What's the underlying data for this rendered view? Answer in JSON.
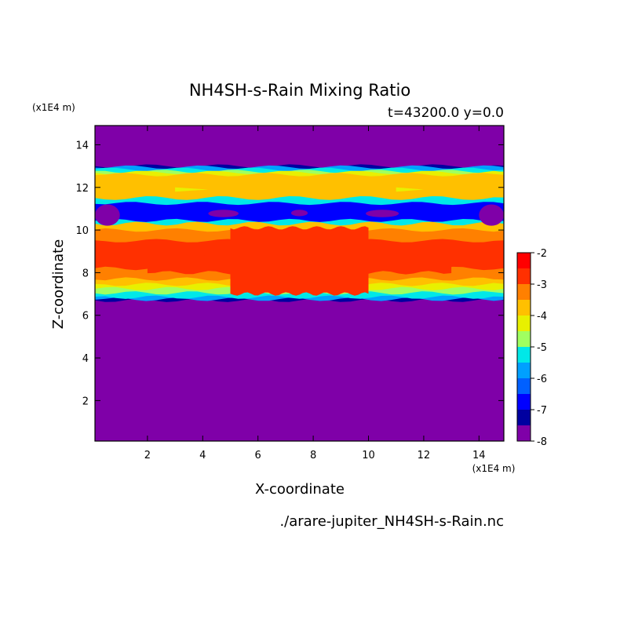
{
  "chart_data": {
    "type": "heatmap",
    "title": "NH4SH-s-Rain Mixing Ratio",
    "subtitle": "t=43200.0 y=0.0",
    "xlabel": "X-coordinate",
    "ylabel": "Z-coordinate",
    "x_unit": "(x1E4 m)",
    "y_unit": "(x1E4 m)",
    "source_file": "./arare-jupiter_NH4SH-s-Rain.nc",
    "xlim": [
      0.1,
      14.9
    ],
    "ylim": [
      0.1,
      14.9
    ],
    "x_ticks": [
      2,
      4,
      6,
      8,
      10,
      12,
      14
    ],
    "y_ticks": [
      2,
      4,
      6,
      8,
      10,
      12,
      14
    ],
    "colorbar": {
      "range": [
        -8,
        -2
      ],
      "tick_labels": [
        "-2",
        "-3",
        "-4",
        "-5",
        "-6",
        "-7",
        "-8"
      ],
      "tick_values": [
        -2,
        -3,
        -4,
        -5,
        -6,
        -7,
        -8
      ],
      "levels": [
        {
          "from": -8.0,
          "to": -7.5,
          "color": "#7f00a8"
        },
        {
          "from": -7.5,
          "to": -7.0,
          "color": "#0000a0"
        },
        {
          "from": -7.0,
          "to": -6.5,
          "color": "#0000ff"
        },
        {
          "from": -6.5,
          "to": -6.0,
          "color": "#0060ff"
        },
        {
          "from": -6.0,
          "to": -5.5,
          "color": "#00a0ff"
        },
        {
          "from": -5.5,
          "to": -5.0,
          "color": "#00e8e8"
        },
        {
          "from": -5.0,
          "to": -4.5,
          "color": "#a0ff60"
        },
        {
          "from": -4.5,
          "to": -4.0,
          "color": "#e8f000"
        },
        {
          "from": -4.0,
          "to": -3.5,
          "color": "#ffc000"
        },
        {
          "from": -3.5,
          "to": -3.0,
          "color": "#ff8000"
        },
        {
          "from": -3.0,
          "to": -2.5,
          "color": "#ff3000"
        },
        {
          "from": -2.5,
          "to": -2.0,
          "color": "#ff0000"
        },
        {
          "from": -2.0,
          "to": -1.5,
          "color": "#ffa0a0"
        }
      ]
    },
    "bands": [
      {
        "level_index": 1,
        "x": [
          0.1,
          14.9
        ],
        "z": [
          6.7,
          13.0
        ]
      },
      {
        "level_index": 4,
        "x": [
          0.1,
          14.9
        ],
        "z": [
          6.75,
          12.95
        ]
      },
      {
        "level_index": 5,
        "x": [
          0.1,
          14.9
        ],
        "z": [
          6.85,
          12.85
        ]
      },
      {
        "level_index": 6,
        "x": [
          0.1,
          14.9
        ],
        "z": [
          7.05,
          12.75
        ]
      },
      {
        "level_index": 7,
        "x": [
          0.1,
          14.9
        ],
        "z": [
          7.25,
          12.7
        ]
      },
      {
        "level_index": 8,
        "x": [
          0.1,
          14.9
        ],
        "z": [
          7.45,
          12.6
        ]
      },
      {
        "level_index": 9,
        "x": [
          0.1,
          14.9
        ],
        "z": [
          7.7,
          10.0
        ]
      },
      {
        "level_index": 10,
        "x": [
          0.1,
          14.9
        ],
        "z": [
          8.2,
          9.5
        ]
      },
      {
        "level_index": 10,
        "x": [
          5.0,
          10.0
        ],
        "z": [
          7.0,
          10.1
        ]
      },
      {
        "level_index": 10,
        "x": [
          2.0,
          13.0
        ],
        "z": [
          8.0,
          8.8
        ]
      }
    ],
    "thin_layer": {
      "level_index": 5,
      "x": [
        0.1,
        14.9
      ],
      "z": [
        10.3,
        11.5
      ]
    },
    "thin_layer_core": {
      "level_index": 2,
      "x": [
        0.1,
        14.9
      ],
      "z": [
        10.45,
        11.25
      ]
    },
    "pockets": [
      {
        "level_index": 0,
        "x": [
          0.1,
          1.0
        ],
        "z": [
          10.2,
          11.2
        ]
      },
      {
        "level_index": 0,
        "x": [
          14.0,
          14.9
        ],
        "z": [
          10.2,
          11.2
        ]
      },
      {
        "level_index": 0,
        "x": [
          4.2,
          5.3
        ],
        "z": [
          10.6,
          10.95
        ]
      },
      {
        "level_index": 0,
        "x": [
          9.9,
          11.1
        ],
        "z": [
          10.6,
          10.95
        ]
      },
      {
        "level_index": 0,
        "x": [
          7.2,
          7.8
        ],
        "z": [
          10.65,
          10.95
        ]
      }
    ],
    "light_patches": [
      {
        "level_index": 7,
        "x": [
          3.0,
          4.2
        ],
        "z": [
          11.8,
          12.0
        ]
      },
      {
        "level_index": 7,
        "x": [
          11.0,
          12.0
        ],
        "z": [
          11.8,
          12.0
        ]
      }
    ]
  }
}
